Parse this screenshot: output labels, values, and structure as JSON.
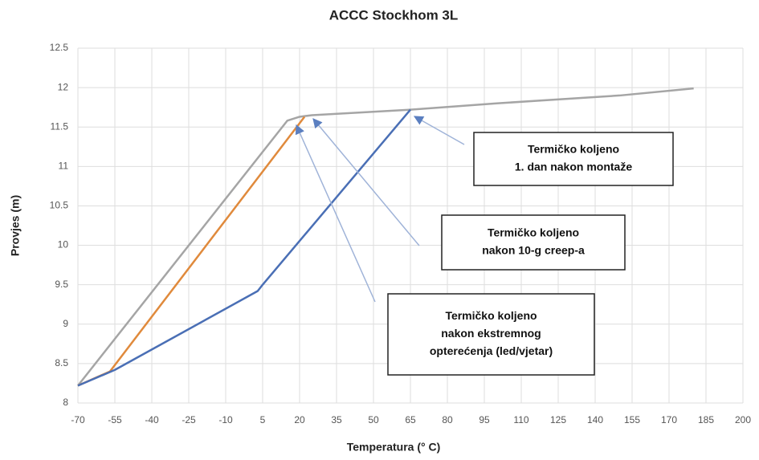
{
  "chart_data": {
    "type": "line",
    "title": "ACCC Stockhom 3L",
    "xlabel": "Temperatura (° C)",
    "ylabel": "Provjes (m)",
    "xlim": [
      -70,
      200
    ],
    "ylim": [
      8,
      12.5
    ],
    "xticks": [
      -70,
      -55,
      -40,
      -25,
      -10,
      5,
      20,
      35,
      50,
      65,
      80,
      95,
      110,
      125,
      140,
      155,
      170,
      185,
      200
    ],
    "yticks": [
      8,
      8.5,
      9,
      9.5,
      10,
      10.5,
      11,
      11.5,
      12,
      12.5
    ],
    "grid": true,
    "series": [
      {
        "color": "#a5a5a5",
        "x": [
          -70,
          15,
          20,
          25,
          65,
          100,
          150,
          180
        ],
        "values": [
          8.22,
          11.58,
          11.63,
          11.65,
          11.72,
          11.8,
          11.9,
          11.99
        ]
      },
      {
        "color": "#e08a3c",
        "x": [
          -70,
          -57,
          22
        ],
        "values": [
          8.22,
          8.4,
          11.63
        ]
      },
      {
        "color": "#4a6fb5",
        "x": [
          -70,
          -55,
          3,
          5,
          65
        ],
        "values": [
          8.22,
          8.42,
          9.42,
          9.5,
          11.72
        ]
      }
    ],
    "annotations": [
      {
        "lines": [
          "Termičko koljeno",
          "1. dan nakon montaže"
        ]
      },
      {
        "lines": [
          "Termičko koljeno",
          "nakon 10-g creep-a"
        ]
      },
      {
        "lines": [
          "Termičko koljeno",
          "nakon ekstremnog",
          "opterećenja (led/vjetar)"
        ]
      }
    ]
  }
}
